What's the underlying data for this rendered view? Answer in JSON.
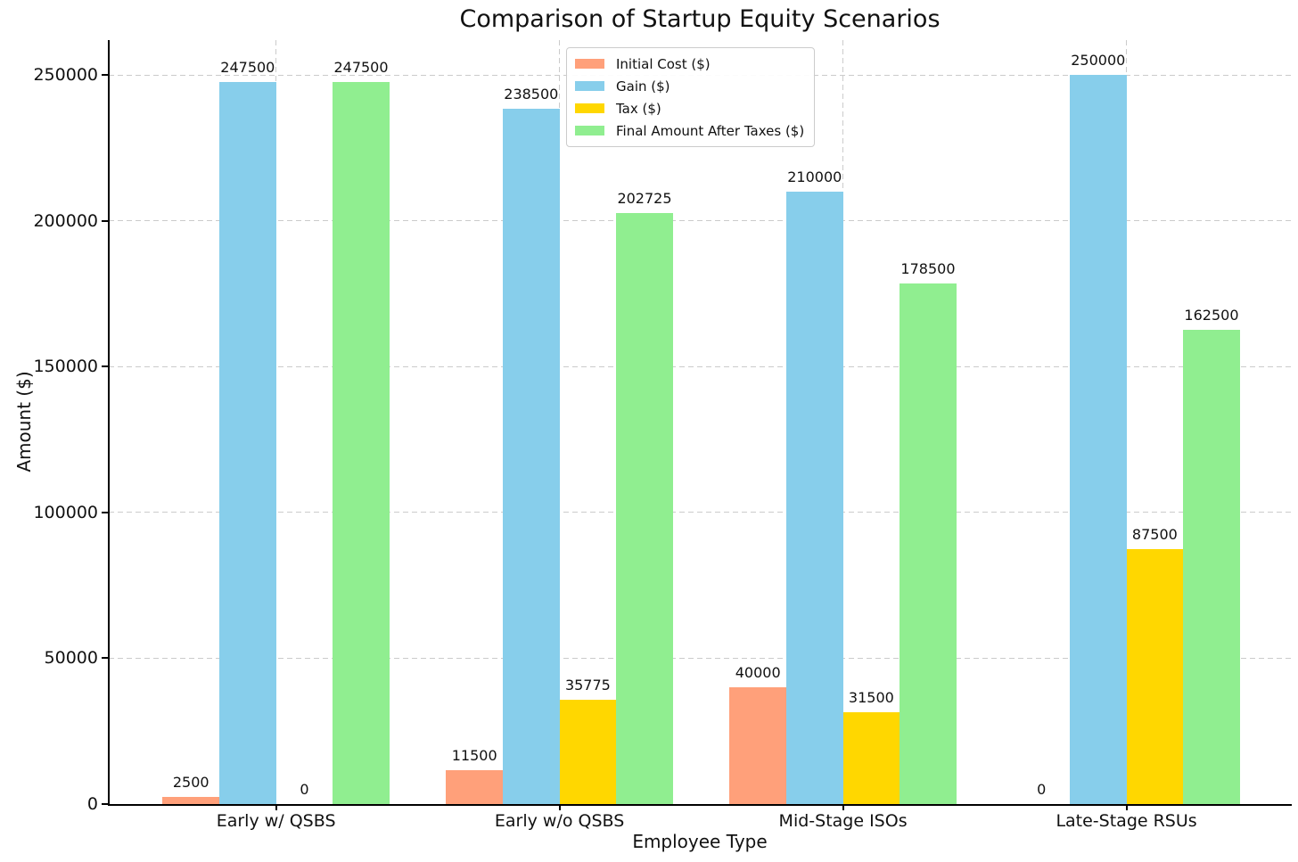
{
  "chart_data": {
    "type": "bar",
    "title": "Comparison of Startup Equity Scenarios",
    "xlabel": "Employee Type",
    "ylabel": "Amount ($)",
    "categories": [
      "Early w/ QSBS",
      "Early w/o QSBS",
      "Mid-Stage ISOs",
      "Late-Stage RSUs"
    ],
    "series": [
      {
        "name": "Initial Cost ($)",
        "color": "#FFA07A",
        "values": [
          2500,
          11500,
          40000,
          0
        ]
      },
      {
        "name": "Gain ($)",
        "color": "#87CEEB",
        "values": [
          247500,
          238500,
          210000,
          250000
        ]
      },
      {
        "name": "Tax ($)",
        "color": "#FFD700",
        "values": [
          0,
          35775,
          31500,
          87500
        ]
      },
      {
        "name": "Final Amount After Taxes ($)",
        "color": "#90EE90",
        "values": [
          247500,
          202725,
          178500,
          162500
        ]
      }
    ],
    "bar_value_labels": true,
    "yticks": [
      0,
      50000,
      100000,
      150000,
      200000,
      250000
    ],
    "ytick_labels": [
      "0",
      "50000",
      "100000",
      "150000",
      "200000",
      "250000"
    ],
    "ylim": [
      0,
      262000
    ],
    "grid": true,
    "grid_style": "dashed",
    "grid_color": "#cbcbcb",
    "legend_position": "upper center",
    "legend_entries": [
      "Initial Cost ($)",
      "Gain ($)",
      "Tax ($)",
      "Final Amount After Taxes ($)"
    ]
  }
}
